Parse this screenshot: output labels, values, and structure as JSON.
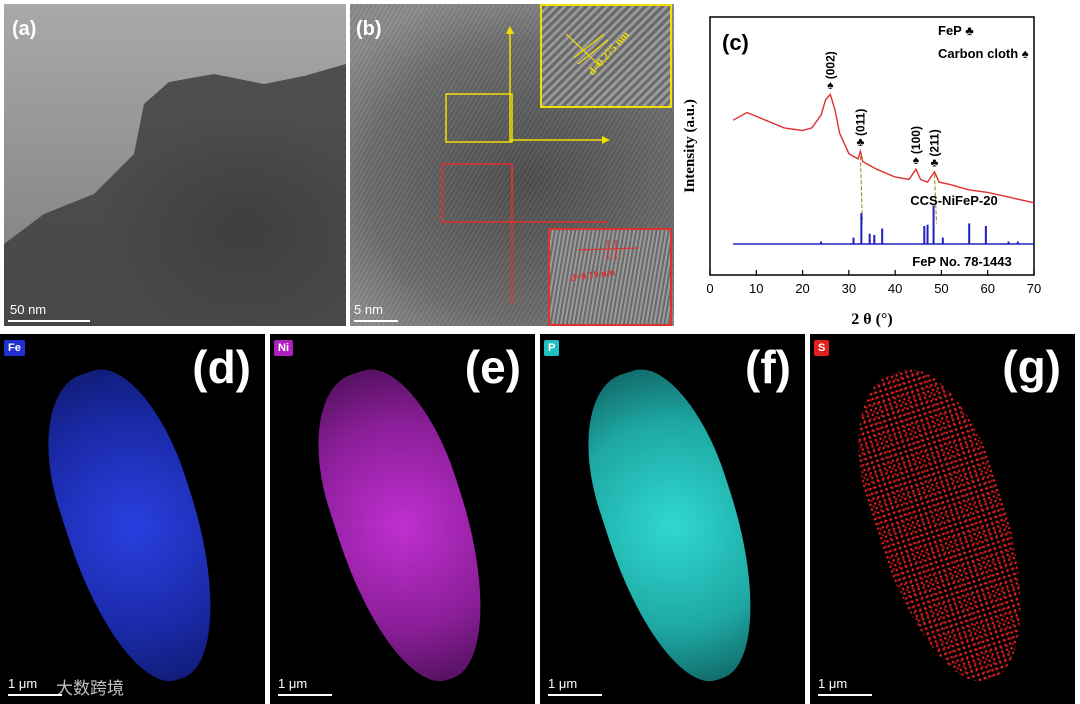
{
  "panels": {
    "a": {
      "label": "(a)",
      "scalebar": "50 nm"
    },
    "b": {
      "label": "(b)",
      "scalebar": "5 nm",
      "inset_top_label": "d=0.275 nm",
      "inset_bottom_label": "d=0.19 nm"
    },
    "c": {
      "label": "(c)"
    },
    "d": {
      "label": "(d)",
      "element": "Fe",
      "scalebar": "1 μm"
    },
    "e": {
      "label": "(e)",
      "element": "Ni",
      "scalebar": "1 μm"
    },
    "f": {
      "label": "(f)",
      "element": "P",
      "scalebar": "1 μm"
    },
    "g": {
      "label": "(g)",
      "element": "S",
      "scalebar": "1 μm"
    }
  },
  "watermark": "大数跨境",
  "colors": {
    "fe": "#2030d0",
    "ni": "#b020c0",
    "p": "#20c0c0",
    "s": "#e02020",
    "xrd_sample": "#e03030",
    "xrd_ref": "#2020c0",
    "inset_b_top": "#f0e000",
    "inset_b_bottom": "#e03030"
  },
  "chart_data": {
    "type": "line",
    "xlabel": "2 θ (°)",
    "ylabel": "Intensity (a.u.)",
    "xlim": [
      0,
      70
    ],
    "xticks": [
      0,
      10,
      20,
      30,
      40,
      50,
      60,
      70
    ],
    "legend": {
      "fep": "FeP ♣",
      "carbon": "Carbon cloth ♠"
    },
    "series": [
      {
        "name": "CCS-NiFeP-20",
        "x": [
          5,
          8,
          12,
          16,
          20,
          22,
          24,
          25,
          26,
          27,
          28,
          30,
          32,
          32.5,
          33,
          36,
          40,
          43,
          44.5,
          45.5,
          47,
          48.5,
          49.5,
          52,
          56,
          60,
          65,
          70
        ],
        "y": [
          0.6,
          0.63,
          0.6,
          0.57,
          0.56,
          0.57,
          0.62,
          0.68,
          0.7,
          0.64,
          0.55,
          0.47,
          0.45,
          0.48,
          0.44,
          0.41,
          0.38,
          0.37,
          0.41,
          0.37,
          0.36,
          0.4,
          0.36,
          0.35,
          0.33,
          0.32,
          0.3,
          0.28
        ]
      },
      {
        "name": "FeP No. 78-1443",
        "peaks": [
          [
            24.0,
            0.02
          ],
          [
            31.0,
            0.05
          ],
          [
            32.7,
            0.24
          ],
          [
            34.5,
            0.08
          ],
          [
            35.5,
            0.07
          ],
          [
            37.2,
            0.12
          ],
          [
            46.3,
            0.14
          ],
          [
            47.0,
            0.15
          ],
          [
            48.3,
            0.3
          ],
          [
            50.3,
            0.05
          ],
          [
            56.0,
            0.16
          ],
          [
            59.6,
            0.14
          ],
          [
            64.5,
            0.02
          ],
          [
            66.5,
            0.02
          ]
        ]
      }
    ],
    "annotations": [
      {
        "text": "(002)",
        "x": 26.0,
        "marker": "♠"
      },
      {
        "text": "(011)",
        "x": 32.5,
        "marker": "♣"
      },
      {
        "text": "(100)",
        "x": 44.5,
        "marker": "♠"
      },
      {
        "text": "(211)",
        "x": 48.5,
        "marker": "♣"
      }
    ]
  }
}
